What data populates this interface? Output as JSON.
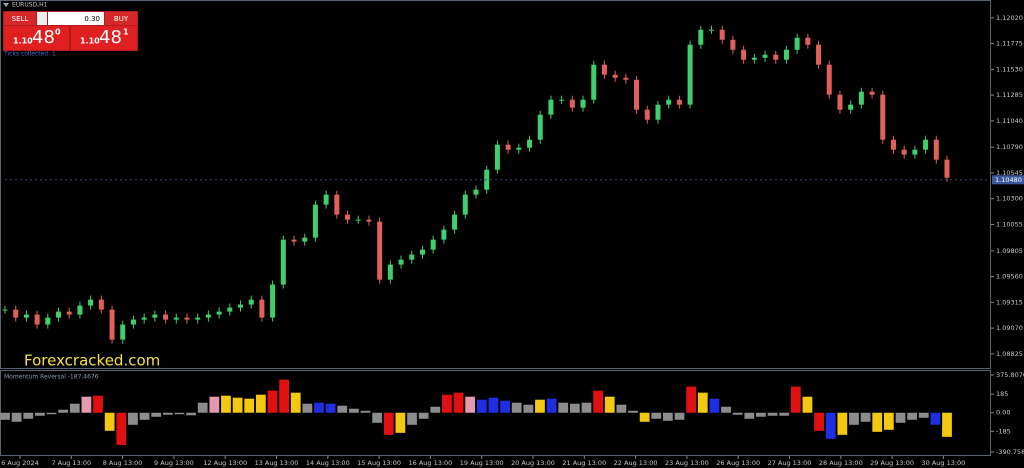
{
  "header": {
    "symbol": "EURUSD,H1"
  },
  "trade_panel": {
    "sell": "SELL",
    "lot": "0.30",
    "buy": "BUY",
    "bid": {
      "prefix": "1.10",
      "big": "48",
      "sup": "0"
    },
    "ask": {
      "prefix": "1.10",
      "big": "48",
      "sup": "1"
    }
  },
  "status_text": "Ticks collected: 1",
  "watermark": "Forexcracked.com",
  "price_chart": {
    "type": "candlestick",
    "up_color": "#3fcf6c",
    "down_color": "#e0605a",
    "ylim": [
      1.0871,
      1.1217
    ],
    "yticks": [
      {
        "value": 1.1202,
        "label": "1.12020"
      },
      {
        "value": 1.11775,
        "label": "1.11775"
      },
      {
        "value": 1.1153,
        "label": "1.11530"
      },
      {
        "value": 1.11285,
        "label": "1.11285"
      },
      {
        "value": 1.1104,
        "label": "1.11040"
      },
      {
        "value": 1.1079,
        "label": "1.10790"
      },
      {
        "value": 1.10545,
        "label": "1.10545"
      },
      {
        "value": 1.103,
        "label": "1.10300"
      },
      {
        "value": 1.10055,
        "label": "1.10055"
      },
      {
        "value": 1.09805,
        "label": "1.09805"
      },
      {
        "value": 1.0956,
        "label": "1.09560"
      },
      {
        "value": 1.09315,
        "label": "1.09315"
      },
      {
        "value": 1.0907,
        "label": "1.09070"
      },
      {
        "value": 1.08825,
        "label": "1.08825"
      }
    ],
    "current_price": {
      "value": 1.1048,
      "label": "1.10480"
    },
    "close": [
      1.09246,
      1.0917,
      1.09199,
      1.09104,
      1.0917,
      1.09227,
      1.09199,
      1.09284,
      1.09341,
      1.09246,
      1.08961,
      1.09104,
      1.09151,
      1.0917,
      1.09199,
      1.09151,
      1.0917,
      1.09151,
      1.0917,
      1.09199,
      1.09227,
      1.09265,
      1.09294,
      1.09341,
      1.0917,
      1.09484,
      1.09911,
      1.09892,
      1.0993,
      1.10244,
      1.10339,
      1.10149,
      1.10101,
      1.10101,
      1.10082,
      1.09531,
      1.09674,
      1.09721,
      1.09769,
      1.09816,
      1.09911,
      1.10006,
      1.10149,
      1.10339,
      1.10386,
      1.10576,
      1.10814,
      1.10766,
      1.10785,
      1.10861,
      1.11099,
      1.11241,
      1.11241,
      1.11165,
      1.11241,
      1.11574,
      1.11479,
      1.1145,
      1.11431,
      1.11146,
      1.11051,
      1.11194,
      1.11241,
      1.11194,
      1.11764,
      1.11906,
      1.11906,
      1.11811,
      1.11716,
      1.11621,
      1.1164,
      1.11669,
      1.11621,
      1.11716,
      1.1183,
      1.11764,
      1.11574,
      1.11289,
      1.11146,
      1.11194,
      1.11317,
      1.11289,
      1.10861,
      1.10766,
      1.10719,
      1.10766,
      1.10861,
      1.10671,
      1.105
    ]
  },
  "indicator": {
    "type": "histogram",
    "title": "Momentum Reversal -187.4676",
    "ylim": [
      -390.7581,
      375.807
    ],
    "yticks": [
      {
        "value": 375.807,
        "label": "375.8070"
      },
      185,
      {
        "value": 0,
        "label": "0.00"
      },
      -185,
      {
        "value": -390.7581,
        "label": "-390.7581"
      }
    ],
    "values": [
      -70,
      -90,
      -60,
      -30,
      -15,
      30,
      90,
      160,
      170,
      -180,
      -320,
      -120,
      -70,
      -40,
      -20,
      -15,
      -25,
      100,
      160,
      170,
      150,
      140,
      180,
      220,
      330,
      200,
      90,
      100,
      90,
      70,
      40,
      20,
      -100,
      -220,
      -200,
      -120,
      -60,
      60,
      180,
      200,
      160,
      130,
      150,
      120,
      100,
      80,
      130,
      140,
      100,
      90,
      100,
      220,
      160,
      80,
      20,
      -90,
      -60,
      -80,
      -70,
      260,
      200,
      140,
      60,
      -20,
      -60,
      -40,
      -30,
      -30,
      260,
      160,
      -180,
      -260,
      -220,
      -120,
      -90,
      -190,
      -170,
      -100,
      -70,
      -50,
      -120,
      -240
    ],
    "colors": [
      "#8c8c8c",
      "#8c8c8c",
      "#8c8c8c",
      "#8c8c8c",
      "#8c8c8c",
      "#8c8c8c",
      "#8c8c8c",
      "#e39ab0",
      "#e01010",
      "#f2c811",
      "#e01010",
      "#8c8c8c",
      "#8c8c8c",
      "#8c8c8c",
      "#8c8c8c",
      "#8c8c8c",
      "#8c8c8c",
      "#8c8c8c",
      "#e39ab0",
      "#f2c811",
      "#f2c811",
      "#f2c811",
      "#f2c811",
      "#e01010",
      "#e01010",
      "#f2c811",
      "#8c8c8c",
      "#1f2ee0",
      "#1f2ee0",
      "#8c8c8c",
      "#8c8c8c",
      "#8c8c8c",
      "#8c8c8c",
      "#e01010",
      "#f2c811",
      "#8c8c8c",
      "#8c8c8c",
      "#8c8c8c",
      "#e01010",
      "#e01010",
      "#e39ab0",
      "#1f2ee0",
      "#1f2ee0",
      "#1f2ee0",
      "#8c8c8c",
      "#8c8c8c",
      "#f2c811",
      "#1f2ee0",
      "#8c8c8c",
      "#8c8c8c",
      "#8c8c8c",
      "#e01010",
      "#f2c811",
      "#8c8c8c",
      "#8c8c8c",
      "#f2c811",
      "#8c8c8c",
      "#8c8c8c",
      "#8c8c8c",
      "#e01010",
      "#f2c811",
      "#1f2ee0",
      "#8c8c8c",
      "#8c8c8c",
      "#8c8c8c",
      "#8c8c8c",
      "#8c8c8c",
      "#8c8c8c",
      "#e01010",
      "#f2c811",
      "#e01010",
      "#1f2ee0",
      "#f2c811",
      "#8c8c8c",
      "#8c8c8c",
      "#f2c811",
      "#f2c811",
      "#8c8c8c",
      "#8c8c8c",
      "#8c8c8c",
      "#1f2ee0",
      "#f2c811"
    ]
  },
  "x_labels": [
    "6 Aug 2024",
    "7 Aug 13:00",
    "8 Aug 13:00",
    "9 Aug 13:00",
    "12 Aug 13:00",
    "13 Aug 13:00",
    "14 Aug 13:00",
    "15 Aug 13:00",
    "16 Aug 13:00",
    "19 Aug 13:00",
    "20 Aug 13:00",
    "21 Aug 13:00",
    "22 Aug 13:00",
    "23 Aug 13:00",
    "26 Aug 13:00",
    "27 Aug 13:00",
    "28 Aug 13:00",
    "29 Aug 13:00",
    "30 Aug 13:00"
  ]
}
